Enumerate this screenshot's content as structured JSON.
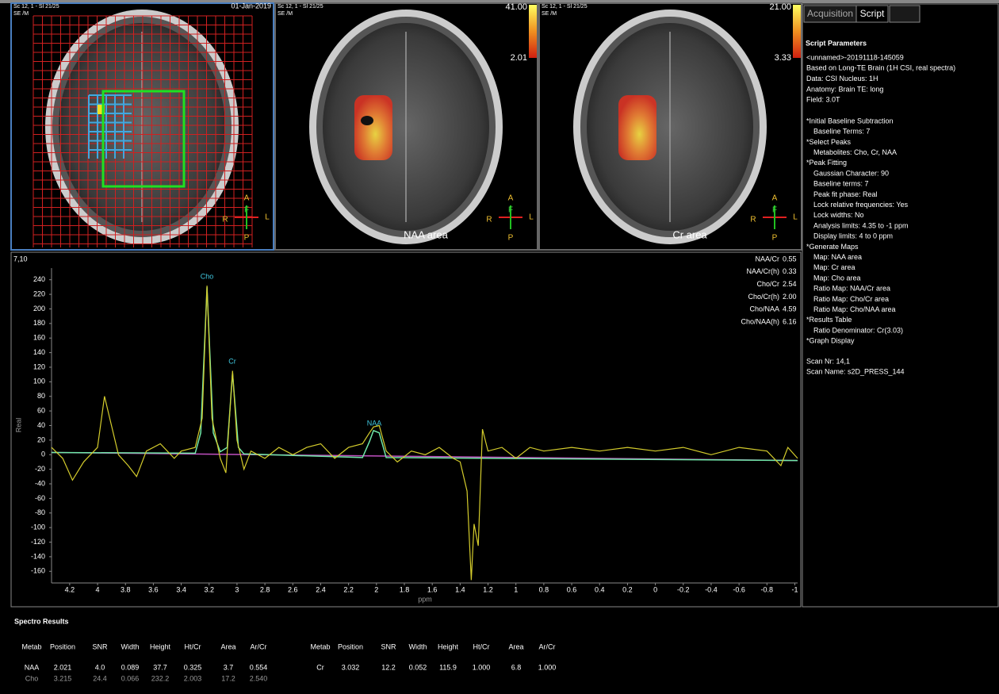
{
  "viewports": [
    {
      "header": [
        "Sc 12, 1 - Sl 21/25",
        "SE /M"
      ],
      "date": "01-Jan-2019",
      "orientation": [
        "A",
        "F",
        "R",
        "L",
        "P"
      ]
    },
    {
      "header": [
        "Sc 12, 1 - Sl 21/25",
        "SE /M"
      ],
      "colorbar": [
        "41.00",
        "2.01"
      ],
      "label": "NAA area",
      "orientation": [
        "A",
        "F",
        "R",
        "L",
        "P"
      ]
    },
    {
      "header": [
        "Sc 12, 1 - Sl 21/25",
        "SE /M"
      ],
      "colorbar": [
        "21.00",
        "3.33"
      ],
      "label": "Cr area",
      "orientation": [
        "A",
        "F",
        "R",
        "L",
        "P"
      ]
    }
  ],
  "tabs": [
    "Acquisition",
    "Script"
  ],
  "script": {
    "title": "Script Parameters",
    "info": [
      "<unnamed>-20191118-145059",
      " Based on Long-TE Brain (1H CSI, real spectra)",
      "Data: CSI  Nucleus: 1H",
      "Anatomy: Brain  TE: long",
      "Field: 3.0T"
    ],
    "steps": [
      {
        "title": "*Initial Baseline Subtraction",
        "items": [
          "Baseline Terms: 7"
        ]
      },
      {
        "title": "*Select Peaks",
        "items": [
          "Metabolites: Cho, Cr, NAA"
        ]
      },
      {
        "title": "*Peak Fitting",
        "items": [
          "Gaussian Character: 90",
          "Baseline terms: 7",
          "Peak fit phase: Real",
          "Lock relative frequencies: Yes",
          "Lock widths: No",
          "Analysis limits: 4.35 to -1 ppm",
          "Display limits: 4 to 0 ppm"
        ]
      },
      {
        "title": "*Generate Maps",
        "items": [
          "Map: NAA area",
          "Map: Cr area",
          "Map: Cho area",
          "Ratio Map: NAA/Cr area",
          "Ratio Map: Cho/Cr area",
          "Ratio Map: Cho/NAA area"
        ]
      },
      {
        "title": "*Results Table",
        "items": [
          "Ratio Denominator: Cr(3.03)"
        ]
      },
      {
        "title": "*Graph Display",
        "items": []
      }
    ],
    "scan": [
      "Scan Nr: 14,1",
      "Scan Name: s2D_PRESS_144"
    ]
  },
  "spectrum": {
    "voxel": "7,10",
    "ratios": [
      {
        "name": "NAA/Cr",
        "value": "0.55"
      },
      {
        "name": "NAA/Cr(h)",
        "value": "0.33"
      },
      {
        "name": "Cho/Cr",
        "value": "2.54"
      },
      {
        "name": "Cho/Cr(h)",
        "value": "2.00"
      },
      {
        "name": "Cho/NAA",
        "value": "4.59"
      },
      {
        "name": "Cho/NAA(h)",
        "value": "6.16"
      }
    ]
  },
  "chart_data": {
    "type": "line",
    "xlabel": "ppm",
    "ylabel": "Real",
    "annotations": [
      "Cho",
      "Cr",
      "NAA"
    ],
    "xlim": [
      4.33,
      -1.02
    ],
    "ylim": [
      -176,
      256
    ],
    "xticks": [
      4.2,
      4,
      3.8,
      3.6,
      3.4,
      3.2,
      3,
      2.8,
      2.6,
      2.4,
      2.2,
      2,
      1.8,
      1.6,
      1.4,
      1.2,
      1,
      0.8,
      0.6,
      0.4,
      0.2,
      0,
      -0.2,
      -0.4,
      -0.6,
      -0.8,
      -1
    ],
    "yticks": [
      -160,
      -140,
      -120,
      -100,
      -80,
      -60,
      -40,
      -20,
      0,
      20,
      40,
      60,
      80,
      100,
      120,
      140,
      160,
      180,
      200,
      220,
      240
    ],
    "series": [
      {
        "color": "#d4cc2c",
        "x": [
          4.33,
          4.25,
          4.18,
          4.1,
          4.0,
          3.95,
          3.9,
          3.85,
          3.78,
          3.72,
          3.65,
          3.55,
          3.45,
          3.4,
          3.3,
          3.25,
          3.215,
          3.18,
          3.12,
          3.08,
          3.032,
          3.0,
          2.95,
          2.9,
          2.8,
          2.7,
          2.6,
          2.5,
          2.4,
          2.3,
          2.2,
          2.1,
          2.05,
          2.021,
          1.98,
          1.93,
          1.85,
          1.75,
          1.65,
          1.55,
          1.45,
          1.4,
          1.35,
          1.32,
          1.3,
          1.27,
          1.24,
          1.2,
          1.1,
          1.0,
          0.9,
          0.8,
          0.6,
          0.4,
          0.2,
          0,
          -0.2,
          -0.4,
          -0.6,
          -0.8,
          -0.9,
          -0.95,
          -1.02
        ],
        "values": [
          10,
          -5,
          -35,
          -10,
          10,
          80,
          40,
          0,
          -15,
          -30,
          5,
          15,
          -5,
          5,
          10,
          50,
          232,
          50,
          -5,
          -25,
          115,
          20,
          -20,
          5,
          -5,
          10,
          0,
          10,
          15,
          -5,
          10,
          15,
          30,
          38,
          40,
          5,
          -10,
          5,
          0,
          10,
          -5,
          -10,
          -50,
          -172,
          -95,
          -125,
          35,
          5,
          10,
          -5,
          10,
          5,
          10,
          5,
          10,
          5,
          10,
          0,
          10,
          5,
          -15,
          10,
          -5
        ]
      },
      {
        "color": "#70e8a8",
        "x": [
          4.33,
          3.3,
          3.26,
          3.215,
          3.17,
          3.12,
          3.07,
          3.032,
          2.99,
          2.95,
          2.1,
          2.05,
          2.021,
          1.98,
          1.93,
          -1.02
        ],
        "values": [
          3,
          2,
          30,
          230,
          30,
          4,
          10,
          112,
          10,
          1,
          -4,
          18,
          33,
          30,
          -4,
          -8
        ]
      },
      {
        "color": "#c050c0",
        "x": [
          4.33,
          -1.02
        ],
        "values": [
          3,
          -8
        ]
      }
    ]
  },
  "results": {
    "title": "Spectro Results",
    "columns": [
      "Metab",
      "Position",
      "SNR",
      "Width",
      "Height",
      "Ht/Cr",
      "Area",
      "Ar/Cr"
    ],
    "left_rows": [
      [
        "NAA",
        "2.021",
        "4.0",
        "0.089",
        "37.7",
        "0.325",
        "3.7",
        "0.554"
      ],
      [
        "Cho",
        "3.215",
        "24.4",
        "0.066",
        "232.2",
        "2.003",
        "17.2",
        "2.540"
      ]
    ],
    "right_rows": [
      [
        "Cr",
        "3.032",
        "12.2",
        "0.052",
        "115.9",
        "1.000",
        "6.8",
        "1.000"
      ]
    ]
  }
}
